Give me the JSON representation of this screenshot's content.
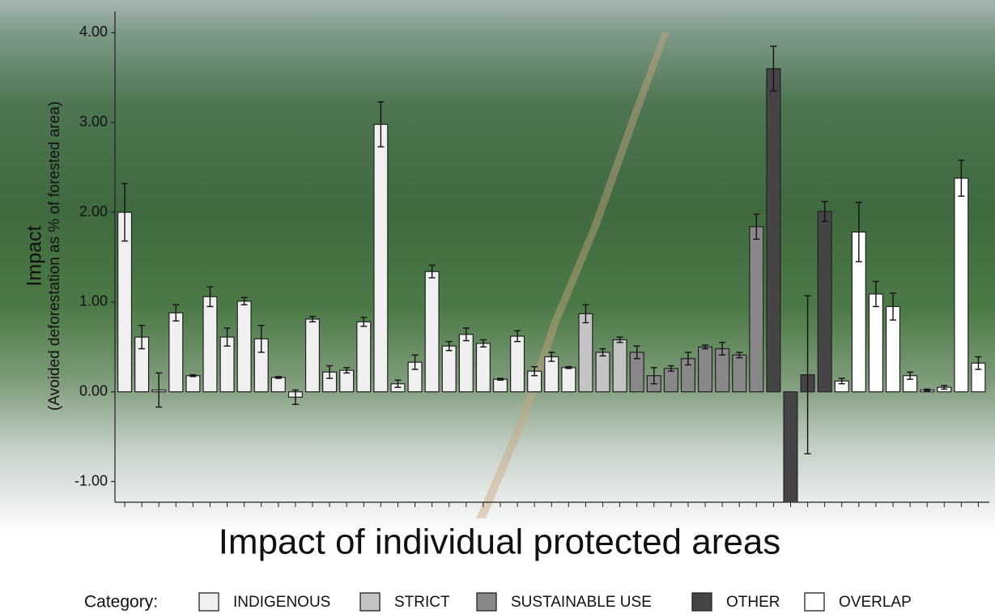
{
  "chart_data": {
    "type": "bar",
    "title": "Impact of individual protected areas",
    "y_label": "Impact",
    "y_sublabel": "(Avoided deforestation as % of forested area)",
    "legend_title": "Category:",
    "legend_position": "bottom",
    "categories": [
      null,
      null,
      null,
      null,
      null,
      null,
      null,
      null,
      null,
      null,
      null,
      null,
      null,
      null,
      null,
      null,
      null,
      null,
      null,
      null,
      null,
      null,
      null,
      null,
      null,
      null,
      null,
      null,
      null,
      null,
      null,
      null,
      null,
      null,
      null,
      null,
      null,
      null,
      null,
      null,
      null,
      null,
      null,
      null,
      null,
      null,
      null,
      null,
      null,
      null,
      null
    ],
    "ylim": [
      -1.23,
      4.23
    ],
    "yticks": [
      {
        "value": -1,
        "label": "-1.00"
      },
      {
        "value": 0,
        "label": "0.00"
      },
      {
        "value": 1,
        "label": "1.00"
      },
      {
        "value": 2,
        "label": "2.00"
      },
      {
        "value": 3,
        "label": "3.00"
      },
      {
        "value": 4,
        "label": "4.00"
      }
    ],
    "series": [
      {
        "name": "INDIGENOUS",
        "color": "#f0f0f0",
        "values": [
          2.0,
          0.61,
          0.02,
          0.88,
          0.18,
          1.06,
          0.61,
          1.01,
          0.59,
          0.16,
          -0.06,
          0.81,
          0.22,
          0.24,
          0.78,
          2.98,
          0.09,
          0.33,
          1.34,
          0.51,
          0.64,
          0.54,
          0.14,
          0.62,
          0.23,
          0.39,
          0.27,
          null,
          null,
          null,
          null,
          null,
          null,
          null,
          null,
          null,
          null,
          null,
          null,
          null,
          null,
          null,
          null,
          null,
          null,
          null,
          null,
          null,
          null,
          null,
          null
        ],
        "errors": [
          0.32,
          0.13,
          0.19,
          0.09,
          0.01,
          0.11,
          0.1,
          0.04,
          0.15,
          0.01,
          0.08,
          0.03,
          0.07,
          0.03,
          0.05,
          0.25,
          0.04,
          0.08,
          0.07,
          0.05,
          0.07,
          0.04,
          0.01,
          0.06,
          0.05,
          0.05,
          0.01,
          null,
          null,
          null,
          null,
          null,
          null,
          null,
          null,
          null,
          null,
          null,
          null,
          null,
          null,
          null,
          null,
          null,
          null,
          null,
          null,
          null,
          null,
          null,
          null
        ]
      },
      {
        "name": "STRICT",
        "color": "#c4c4c4",
        "values": [
          null,
          null,
          null,
          null,
          null,
          null,
          null,
          null,
          null,
          null,
          null,
          null,
          null,
          null,
          null,
          null,
          null,
          null,
          null,
          null,
          null,
          null,
          null,
          null,
          null,
          null,
          null,
          0.87,
          0.44,
          0.58,
          null,
          null,
          null,
          null,
          null,
          null,
          null,
          null,
          null,
          null,
          null,
          null,
          null,
          null,
          null,
          null,
          null,
          null,
          null,
          null,
          null
        ],
        "errors": [
          null,
          null,
          null,
          null,
          null,
          null,
          null,
          null,
          null,
          null,
          null,
          null,
          null,
          null,
          null,
          null,
          null,
          null,
          null,
          null,
          null,
          null,
          null,
          null,
          null,
          null,
          null,
          0.1,
          0.04,
          0.03,
          null,
          null,
          null,
          null,
          null,
          null,
          null,
          null,
          null,
          null,
          null,
          null,
          null,
          null,
          null,
          null,
          null,
          null,
          null,
          null,
          null
        ]
      },
      {
        "name": "SUSTAINABLE USE",
        "color": "#888888",
        "values": [
          null,
          null,
          null,
          null,
          null,
          null,
          null,
          null,
          null,
          null,
          null,
          null,
          null,
          null,
          null,
          null,
          null,
          null,
          null,
          null,
          null,
          null,
          null,
          null,
          null,
          null,
          null,
          null,
          null,
          null,
          0.44,
          0.18,
          0.26,
          0.37,
          0.5,
          0.48,
          0.41,
          1.84,
          null,
          null,
          null,
          null,
          null,
          null,
          null,
          null,
          null,
          null,
          null,
          null,
          null
        ],
        "errors": [
          null,
          null,
          null,
          null,
          null,
          null,
          null,
          null,
          null,
          null,
          null,
          null,
          null,
          null,
          null,
          null,
          null,
          null,
          null,
          null,
          null,
          null,
          null,
          null,
          null,
          null,
          null,
          null,
          null,
          null,
          0.07,
          0.09,
          0.03,
          0.07,
          0.02,
          0.07,
          0.03,
          0.14,
          null,
          null,
          null,
          null,
          null,
          null,
          null,
          null,
          null,
          null,
          null,
          null,
          null
        ]
      },
      {
        "name": "OTHER",
        "color": "#454545",
        "values": [
          null,
          null,
          null,
          null,
          null,
          null,
          null,
          null,
          null,
          null,
          null,
          null,
          null,
          null,
          null,
          null,
          null,
          null,
          null,
          null,
          null,
          null,
          null,
          null,
          null,
          null,
          null,
          null,
          null,
          null,
          null,
          null,
          null,
          null,
          null,
          null,
          null,
          null,
          3.6,
          -1.25,
          0.19,
          2.01,
          null,
          null,
          null,
          null,
          null,
          null,
          null,
          null,
          null
        ],
        "errors": [
          null,
          null,
          null,
          null,
          null,
          null,
          null,
          null,
          null,
          null,
          null,
          null,
          null,
          null,
          null,
          null,
          null,
          null,
          null,
          null,
          null,
          null,
          null,
          null,
          null,
          null,
          null,
          null,
          null,
          null,
          null,
          null,
          null,
          null,
          null,
          null,
          null,
          null,
          0.25,
          null,
          0.88,
          0.11,
          null,
          null,
          null,
          null,
          null,
          null,
          null,
          null,
          null
        ]
      },
      {
        "name": "OVERLAP",
        "color": "#ffffff",
        "values": [
          null,
          null,
          null,
          null,
          null,
          null,
          null,
          null,
          null,
          null,
          null,
          null,
          null,
          null,
          null,
          null,
          null,
          null,
          null,
          null,
          null,
          null,
          null,
          null,
          null,
          null,
          null,
          null,
          null,
          null,
          null,
          null,
          null,
          null,
          null,
          null,
          null,
          null,
          null,
          null,
          null,
          null,
          0.12,
          1.78,
          1.09,
          0.95,
          0.18,
          0.02,
          0.05,
          2.38,
          0.32
        ],
        "errors": [
          null,
          null,
          null,
          null,
          null,
          null,
          null,
          null,
          null,
          null,
          null,
          null,
          null,
          null,
          null,
          null,
          null,
          null,
          null,
          null,
          null,
          null,
          null,
          null,
          null,
          null,
          null,
          null,
          null,
          null,
          null,
          null,
          null,
          null,
          null,
          null,
          null,
          null,
          null,
          null,
          null,
          null,
          0.03,
          0.33,
          0.14,
          0.15,
          0.04,
          0.01,
          0.02,
          0.2,
          0.07
        ]
      }
    ]
  }
}
